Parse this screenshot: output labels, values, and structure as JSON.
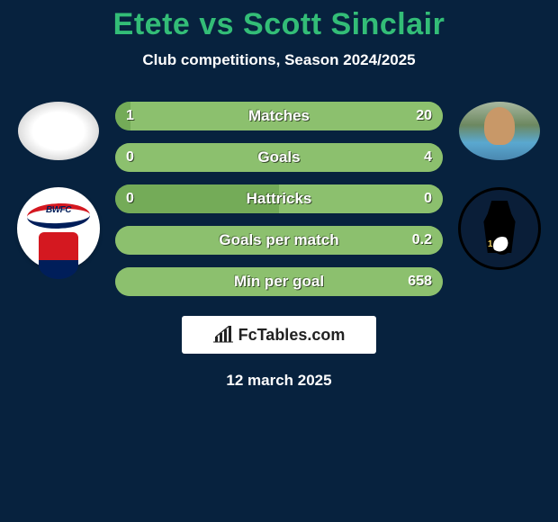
{
  "background_color": "#07223e",
  "text_color": "#ffffff",
  "title_color": "#33bd77",
  "title": "Etete vs Scott Sinclair",
  "subtitle": "Club competitions, Season 2024/2025",
  "date": "12 march 2025",
  "brand": {
    "text": "FcTables.com"
  },
  "left": {
    "player_name": "Etete",
    "club_badge_text": "BWFC"
  },
  "right": {
    "player_name": "Scott Sinclair",
    "club_year": "1883"
  },
  "bars": {
    "track_color": "#5e8c46",
    "left_fill_color": "#74ab58",
    "right_fill_color": "#8cc06e",
    "value_color": "#ffffff",
    "label_color": "#ffffff",
    "rows": [
      {
        "label": "Matches",
        "left_val": "1",
        "right_val": "20",
        "left_pct": 4.8,
        "right_pct": 95.2
      },
      {
        "label": "Goals",
        "left_val": "0",
        "right_val": "4",
        "left_pct": 0,
        "right_pct": 100
      },
      {
        "label": "Hattricks",
        "left_val": "0",
        "right_val": "0",
        "left_pct": 50,
        "right_pct": 50
      },
      {
        "label": "Goals per match",
        "left_val": "",
        "right_val": "0.2",
        "left_pct": 0,
        "right_pct": 100
      },
      {
        "label": "Min per goal",
        "left_val": "",
        "right_val": "658",
        "left_pct": 0,
        "right_pct": 100
      }
    ]
  }
}
